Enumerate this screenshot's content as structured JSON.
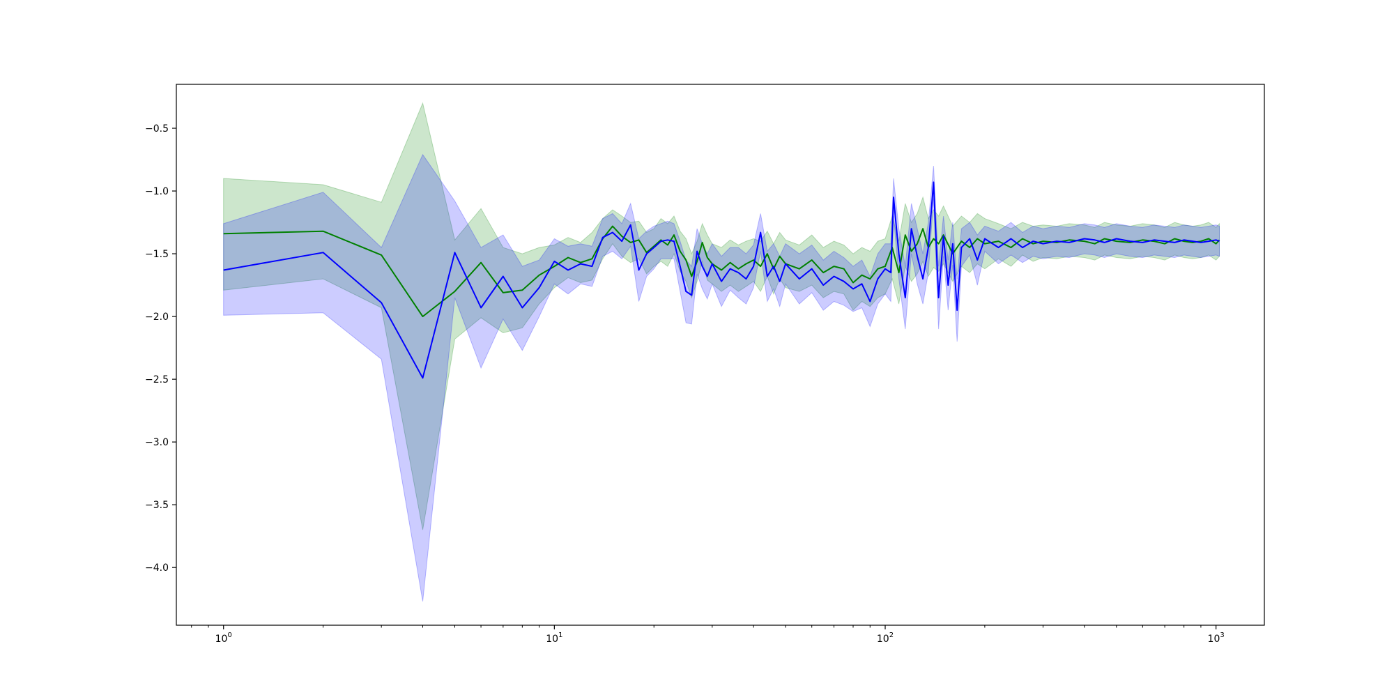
{
  "chart_data": {
    "type": "line",
    "title": "",
    "xlabel": "",
    "ylabel": "",
    "xscale": "log",
    "xlim": [
      0.72,
      1400
    ],
    "ylim": [
      -4.46,
      -0.15
    ],
    "grid": false,
    "legend": "none",
    "x_ticks": [
      {
        "value": 1,
        "label": "10",
        "exp": "0"
      },
      {
        "value": 10,
        "label": "10",
        "exp": "1"
      },
      {
        "value": 100,
        "label": "10",
        "exp": "2"
      },
      {
        "value": 1000,
        "label": "10",
        "exp": "3"
      }
    ],
    "y_ticks": [
      {
        "value": -0.5,
        "label": "−0.5"
      },
      {
        "value": -1.0,
        "label": "−1.0"
      },
      {
        "value": -1.5,
        "label": "−1.5"
      },
      {
        "value": -2.0,
        "label": "−2.0"
      },
      {
        "value": -2.5,
        "label": "−2.5"
      },
      {
        "value": -3.0,
        "label": "−3.0"
      },
      {
        "value": -3.5,
        "label": "−3.5"
      },
      {
        "value": -4.0,
        "label": "−4.0"
      }
    ],
    "series": [
      {
        "color": "#008000",
        "band_color": "#008000",
        "band_opacity": 0.2,
        "x": [
          1,
          2,
          3,
          4,
          5,
          6,
          7,
          8,
          9,
          10,
          11,
          12,
          13,
          14,
          15,
          16,
          17,
          18,
          19,
          20,
          21,
          22,
          23,
          24,
          25,
          26,
          27,
          28,
          29,
          30,
          32,
          34,
          36,
          38,
          40,
          42,
          44,
          46,
          48,
          50,
          55,
          60,
          65,
          70,
          75,
          80,
          85,
          90,
          95,
          100,
          105,
          110,
          115,
          120,
          125,
          130,
          135,
          140,
          145,
          150,
          160,
          170,
          180,
          190,
          200,
          220,
          240,
          260,
          280,
          300,
          330,
          360,
          400,
          430,
          460,
          500,
          550,
          600,
          650,
          700,
          750,
          800,
          850,
          900,
          950,
          1000,
          1024
        ],
        "y": [
          -1.34,
          -1.32,
          -1.51,
          -2.0,
          -1.8,
          -1.57,
          -1.81,
          -1.79,
          -1.67,
          -1.6,
          -1.53,
          -1.57,
          -1.54,
          -1.38,
          -1.28,
          -1.36,
          -1.41,
          -1.39,
          -1.49,
          -1.44,
          -1.39,
          -1.43,
          -1.35,
          -1.48,
          -1.55,
          -1.68,
          -1.56,
          -1.41,
          -1.53,
          -1.58,
          -1.63,
          -1.57,
          -1.62,
          -1.58,
          -1.55,
          -1.6,
          -1.5,
          -1.62,
          -1.52,
          -1.58,
          -1.62,
          -1.55,
          -1.65,
          -1.6,
          -1.62,
          -1.73,
          -1.67,
          -1.7,
          -1.62,
          -1.6,
          -1.45,
          -1.65,
          -1.35,
          -1.48,
          -1.42,
          -1.3,
          -1.45,
          -1.38,
          -1.42,
          -1.35,
          -1.5,
          -1.4,
          -1.45,
          -1.38,
          -1.42,
          -1.4,
          -1.45,
          -1.38,
          -1.42,
          -1.4,
          -1.41,
          -1.39,
          -1.4,
          -1.42,
          -1.38,
          -1.4,
          -1.41,
          -1.39,
          -1.4,
          -1.42,
          -1.38,
          -1.4,
          -1.41,
          -1.4,
          -1.38,
          -1.42,
          -1.39
        ],
        "y_upper": [
          -0.9,
          -0.95,
          -1.09,
          -0.3,
          -1.39,
          -1.14,
          -1.45,
          -1.5,
          -1.45,
          -1.43,
          -1.37,
          -1.41,
          -1.33,
          -1.22,
          -1.15,
          -1.2,
          -1.25,
          -1.24,
          -1.33,
          -1.3,
          -1.22,
          -1.26,
          -1.2,
          -1.32,
          -1.38,
          -1.5,
          -1.4,
          -1.26,
          -1.35,
          -1.42,
          -1.45,
          -1.39,
          -1.43,
          -1.4,
          -1.38,
          -1.4,
          -1.32,
          -1.42,
          -1.33,
          -1.39,
          -1.43,
          -1.35,
          -1.45,
          -1.4,
          -1.43,
          -1.5,
          -1.45,
          -1.48,
          -1.4,
          -1.38,
          -1.2,
          -1.4,
          -1.1,
          -1.25,
          -1.18,
          -1.05,
          -1.22,
          -1.15,
          -1.2,
          -1.12,
          -1.28,
          -1.2,
          -1.25,
          -1.18,
          -1.22,
          -1.26,
          -1.3,
          -1.25,
          -1.28,
          -1.27,
          -1.28,
          -1.26,
          -1.27,
          -1.29,
          -1.25,
          -1.27,
          -1.28,
          -1.26,
          -1.27,
          -1.29,
          -1.25,
          -1.27,
          -1.28,
          -1.27,
          -1.25,
          -1.29,
          -1.26
        ],
        "y_lower": [
          -1.79,
          -1.7,
          -1.93,
          -3.7,
          -2.18,
          -2.01,
          -2.13,
          -2.09,
          -1.9,
          -1.77,
          -1.69,
          -1.73,
          -1.71,
          -1.54,
          -1.42,
          -1.52,
          -1.57,
          -1.54,
          -1.66,
          -1.6,
          -1.56,
          -1.6,
          -1.5,
          -1.64,
          -1.72,
          -1.85,
          -1.72,
          -1.56,
          -1.71,
          -1.74,
          -1.8,
          -1.75,
          -1.8,
          -1.76,
          -1.72,
          -1.8,
          -1.68,
          -1.82,
          -1.7,
          -1.77,
          -1.8,
          -1.75,
          -1.85,
          -1.8,
          -1.82,
          -1.95,
          -1.88,
          -1.92,
          -1.85,
          -1.82,
          -1.7,
          -1.9,
          -1.6,
          -1.72,
          -1.66,
          -1.56,
          -1.68,
          -1.61,
          -1.64,
          -1.58,
          -1.72,
          -1.6,
          -1.65,
          -1.58,
          -1.62,
          -1.54,
          -1.6,
          -1.51,
          -1.56,
          -1.53,
          -1.54,
          -1.52,
          -1.53,
          -1.55,
          -1.51,
          -1.53,
          -1.54,
          -1.52,
          -1.53,
          -1.55,
          -1.51,
          -1.53,
          -1.54,
          -1.53,
          -1.51,
          -1.55,
          -1.52
        ]
      },
      {
        "color": "#0000ff",
        "band_color": "#0000ff",
        "band_opacity": 0.2,
        "x": [
          1,
          2,
          3,
          4,
          5,
          6,
          7,
          8,
          9,
          10,
          11,
          12,
          13,
          14,
          15,
          16,
          17,
          18,
          19,
          20,
          21,
          22,
          23,
          24,
          25,
          26,
          27,
          28,
          29,
          30,
          32,
          34,
          36,
          38,
          40,
          42,
          44,
          46,
          48,
          50,
          55,
          60,
          65,
          70,
          75,
          80,
          85,
          90,
          95,
          100,
          104,
          106,
          110,
          115,
          120,
          125,
          130,
          135,
          140,
          145,
          150,
          155,
          160,
          165,
          170,
          180,
          190,
          200,
          220,
          240,
          260,
          280,
          300,
          330,
          360,
          400,
          430,
          460,
          500,
          550,
          600,
          650,
          700,
          750,
          800,
          850,
          900,
          950,
          1000,
          1024
        ],
        "y": [
          -1.63,
          -1.49,
          -1.89,
          -2.49,
          -1.49,
          -1.93,
          -1.68,
          -1.93,
          -1.77,
          -1.56,
          -1.63,
          -1.58,
          -1.6,
          -1.37,
          -1.33,
          -1.4,
          -1.27,
          -1.63,
          -1.5,
          -1.45,
          -1.4,
          -1.39,
          -1.4,
          -1.6,
          -1.8,
          -1.83,
          -1.48,
          -1.6,
          -1.68,
          -1.58,
          -1.72,
          -1.62,
          -1.65,
          -1.7,
          -1.6,
          -1.33,
          -1.68,
          -1.6,
          -1.72,
          -1.58,
          -1.7,
          -1.62,
          -1.75,
          -1.68,
          -1.72,
          -1.78,
          -1.74,
          -1.88,
          -1.7,
          -1.62,
          -1.65,
          -1.05,
          -1.5,
          -1.85,
          -1.3,
          -1.52,
          -1.7,
          -1.45,
          -0.93,
          -1.85,
          -1.36,
          -1.75,
          -1.42,
          -1.95,
          -1.45,
          -1.38,
          -1.55,
          -1.38,
          -1.45,
          -1.38,
          -1.45,
          -1.4,
          -1.42,
          -1.4,
          -1.41,
          -1.38,
          -1.39,
          -1.41,
          -1.38,
          -1.4,
          -1.41,
          -1.39,
          -1.4,
          -1.41,
          -1.39,
          -1.4,
          -1.41,
          -1.4,
          -1.39,
          -1.4
        ],
        "y_upper": [
          -1.26,
          -1.01,
          -1.45,
          -0.71,
          -1.08,
          -1.45,
          -1.35,
          -1.6,
          -1.55,
          -1.38,
          -1.44,
          -1.42,
          -1.44,
          -1.22,
          -1.18,
          -1.26,
          -1.1,
          -1.38,
          -1.32,
          -1.28,
          -1.26,
          -1.24,
          -1.26,
          -1.4,
          -1.55,
          -1.6,
          -1.3,
          -1.42,
          -1.5,
          -1.42,
          -1.52,
          -1.45,
          -1.45,
          -1.5,
          -1.43,
          -1.18,
          -1.48,
          -1.42,
          -1.52,
          -1.42,
          -1.5,
          -1.43,
          -1.55,
          -1.48,
          -1.53,
          -1.6,
          -1.55,
          -1.68,
          -1.5,
          -1.42,
          -1.42,
          -0.9,
          -1.3,
          -1.6,
          -1.1,
          -1.3,
          -1.5,
          -1.25,
          -0.8,
          -1.6,
          -1.2,
          -1.55,
          -1.25,
          -1.7,
          -1.3,
          -1.25,
          -1.35,
          -1.28,
          -1.32,
          -1.25,
          -1.33,
          -1.28,
          -1.3,
          -1.28,
          -1.29,
          -1.26,
          -1.27,
          -1.29,
          -1.26,
          -1.28,
          -1.29,
          -1.27,
          -1.28,
          -1.29,
          -1.27,
          -1.28,
          -1.29,
          -1.28,
          -1.27,
          -1.28
        ],
        "y_lower": [
          -1.99,
          -1.97,
          -2.34,
          -4.27,
          -1.85,
          -2.41,
          -2.02,
          -2.27,
          -2.0,
          -1.74,
          -1.82,
          -1.74,
          -1.76,
          -1.52,
          -1.48,
          -1.54,
          -1.44,
          -1.88,
          -1.68,
          -1.62,
          -1.54,
          -1.54,
          -1.54,
          -1.8,
          -2.05,
          -2.06,
          -1.66,
          -1.78,
          -1.86,
          -1.74,
          -1.92,
          -1.79,
          -1.85,
          -1.9,
          -1.77,
          -1.48,
          -1.88,
          -1.78,
          -1.92,
          -1.74,
          -1.9,
          -1.81,
          -1.95,
          -1.88,
          -1.91,
          -1.96,
          -1.93,
          -2.08,
          -1.9,
          -1.82,
          -1.88,
          -1.2,
          -1.7,
          -2.1,
          -1.5,
          -1.74,
          -1.9,
          -1.65,
          -1.06,
          -2.1,
          -1.52,
          -1.95,
          -1.59,
          -2.2,
          -1.6,
          -1.51,
          -1.75,
          -1.48,
          -1.58,
          -1.51,
          -1.57,
          -1.52,
          -1.54,
          -1.52,
          -1.53,
          -1.5,
          -1.51,
          -1.53,
          -1.5,
          -1.52,
          -1.53,
          -1.51,
          -1.52,
          -1.53,
          -1.51,
          -1.52,
          -1.53,
          -1.52,
          -1.51,
          -1.52
        ]
      }
    ]
  }
}
